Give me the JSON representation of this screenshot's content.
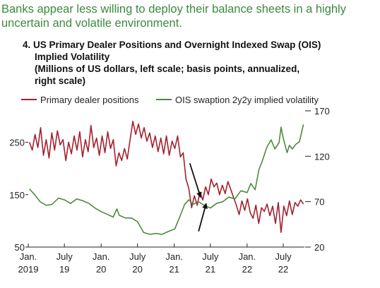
{
  "headline": [
    "Banks appear less willing to deploy their balance sheets in a highly",
    "uncertain and volatile environment."
  ],
  "chart_data": {
    "type": "line",
    "number_label": "4.",
    "title": "US Primary Dealer Positions and Overnight Indexed Swap (OIS) Implied Volatility",
    "subtitle": "(Millions of US dollars, left scale; basis points, annualized, right scale)",
    "title_lines": [
      "4. US Primary Dealer Positions and Overnight Indexed Swap (OIS)",
      "Implied Volatility",
      "(Millions of US dollars, left scale; basis points, annualized,",
      "right scale)"
    ],
    "x_range": [
      "2019-01-01",
      "2022-10-15"
    ],
    "x_ticks": [
      {
        "date": "2019-01-01",
        "line1": "Jan.",
        "line2": "2019"
      },
      {
        "date": "2019-07-01",
        "line1": "July",
        "line2": "19"
      },
      {
        "date": "2020-01-01",
        "line1": "Jan.",
        "line2": "20"
      },
      {
        "date": "2020-07-01",
        "line1": "July",
        "line2": "20"
      },
      {
        "date": "2021-01-01",
        "line1": "Jan.",
        "line2": "21"
      },
      {
        "date": "2021-07-01",
        "line1": "July",
        "line2": "21"
      },
      {
        "date": "2022-01-01",
        "line1": "Jan.",
        "line2": "22"
      },
      {
        "date": "2022-07-01",
        "line1": "July",
        "line2": "22"
      }
    ],
    "y_left": {
      "range": [
        50,
        310
      ],
      "ticks": [
        "50",
        "150",
        "250"
      ]
    },
    "y_right": {
      "range": [
        20,
        170
      ],
      "ticks": [
        "20",
        "70",
        "120",
        "170"
      ]
    },
    "legend_position": "top",
    "annotation": "two arrows pointing to the crossover of the series around May 2021",
    "series": [
      {
        "name": "Primary dealer positions",
        "axis": "left",
        "color": "#a3212e",
        "points": [
          [
            "2019-01-07",
            250
          ],
          [
            "2019-01-21",
            235
          ],
          [
            "2019-02-04",
            265
          ],
          [
            "2019-02-18",
            240
          ],
          [
            "2019-03-04",
            278
          ],
          [
            "2019-03-18",
            225
          ],
          [
            "2019-04-01",
            255
          ],
          [
            "2019-04-15",
            220
          ],
          [
            "2019-04-29",
            268
          ],
          [
            "2019-05-13",
            235
          ],
          [
            "2019-05-27",
            272
          ],
          [
            "2019-06-10",
            245
          ],
          [
            "2019-06-24",
            255
          ],
          [
            "2019-07-08",
            215
          ],
          [
            "2019-07-22",
            250
          ],
          [
            "2019-08-05",
            228
          ],
          [
            "2019-08-19",
            262
          ],
          [
            "2019-09-02",
            235
          ],
          [
            "2019-09-16",
            270
          ],
          [
            "2019-09-30",
            222
          ],
          [
            "2019-10-14",
            255
          ],
          [
            "2019-10-28",
            232
          ],
          [
            "2019-11-11",
            282
          ],
          [
            "2019-11-25",
            240
          ],
          [
            "2019-12-09",
            258
          ],
          [
            "2019-12-23",
            225
          ],
          [
            "2020-01-06",
            262
          ],
          [
            "2020-01-20",
            230
          ],
          [
            "2020-02-03",
            270
          ],
          [
            "2020-02-17",
            238
          ],
          [
            "2020-03-02",
            255
          ],
          [
            "2020-03-16",
            205
          ],
          [
            "2020-03-30",
            230
          ],
          [
            "2020-04-13",
            215
          ],
          [
            "2020-04-27",
            238
          ],
          [
            "2020-05-11",
            218
          ],
          [
            "2020-05-25",
            255
          ],
          [
            "2020-06-08",
            290
          ],
          [
            "2020-06-22",
            265
          ],
          [
            "2020-07-06",
            285
          ],
          [
            "2020-07-20",
            258
          ],
          [
            "2020-08-03",
            278
          ],
          [
            "2020-08-17",
            252
          ],
          [
            "2020-08-31",
            268
          ],
          [
            "2020-09-14",
            240
          ],
          [
            "2020-09-28",
            262
          ],
          [
            "2020-10-12",
            232
          ],
          [
            "2020-10-26",
            258
          ],
          [
            "2020-11-09",
            228
          ],
          [
            "2020-11-23",
            262
          ],
          [
            "2020-12-07",
            225
          ],
          [
            "2020-12-21",
            252
          ],
          [
            "2021-01-04",
            238
          ],
          [
            "2021-01-18",
            262
          ],
          [
            "2021-02-01",
            222
          ],
          [
            "2021-02-15",
            230
          ],
          [
            "2021-03-01",
            180
          ],
          [
            "2021-03-15",
            162
          ],
          [
            "2021-03-29",
            125
          ],
          [
            "2021-04-12",
            148
          ],
          [
            "2021-04-26",
            130
          ],
          [
            "2021-05-10",
            155
          ],
          [
            "2021-05-24",
            140
          ],
          [
            "2021-06-07",
            165
          ],
          [
            "2021-06-21",
            150
          ],
          [
            "2021-07-05",
            180
          ],
          [
            "2021-07-19",
            165
          ],
          [
            "2021-08-02",
            172
          ],
          [
            "2021-08-16",
            150
          ],
          [
            "2021-08-30",
            168
          ],
          [
            "2021-09-13",
            152
          ],
          [
            "2021-09-27",
            175
          ],
          [
            "2021-10-11",
            160
          ],
          [
            "2021-10-25",
            145
          ],
          [
            "2021-11-08",
            130
          ],
          [
            "2021-11-22",
            112
          ],
          [
            "2021-12-06",
            138
          ],
          [
            "2021-12-20",
            120
          ],
          [
            "2022-01-03",
            142
          ],
          [
            "2022-01-17",
            115
          ],
          [
            "2022-01-31",
            105
          ],
          [
            "2022-02-14",
            130
          ],
          [
            "2022-02-28",
            95
          ],
          [
            "2022-03-14",
            125
          ],
          [
            "2022-03-28",
            118
          ],
          [
            "2022-04-11",
            132
          ],
          [
            "2022-04-25",
            110
          ],
          [
            "2022-05-09",
            128
          ],
          [
            "2022-05-23",
            95
          ],
          [
            "2022-06-06",
            135
          ],
          [
            "2022-06-20",
            78
          ],
          [
            "2022-07-04",
            128
          ],
          [
            "2022-07-18",
            110
          ],
          [
            "2022-08-01",
            138
          ],
          [
            "2022-08-15",
            112
          ],
          [
            "2022-08-29",
            135
          ],
          [
            "2022-09-12",
            128
          ],
          [
            "2022-09-26",
            140
          ],
          [
            "2022-10-10",
            132
          ]
        ]
      },
      {
        "name": "OIS swaption 2y2y implied volatility",
        "axis": "right",
        "color": "#4c8a3c",
        "points": [
          [
            "2019-01-07",
            84
          ],
          [
            "2019-02-01",
            78
          ],
          [
            "2019-03-01",
            70
          ],
          [
            "2019-04-01",
            66
          ],
          [
            "2019-05-01",
            67
          ],
          [
            "2019-06-01",
            74
          ],
          [
            "2019-07-01",
            72
          ],
          [
            "2019-08-01",
            68
          ],
          [
            "2019-09-01",
            73
          ],
          [
            "2019-10-01",
            71
          ],
          [
            "2019-11-01",
            68
          ],
          [
            "2019-12-01",
            63
          ],
          [
            "2020-01-01",
            59
          ],
          [
            "2020-02-01",
            56
          ],
          [
            "2020-03-01",
            53
          ],
          [
            "2020-03-20",
            62
          ],
          [
            "2020-04-01",
            55
          ],
          [
            "2020-05-01",
            52
          ],
          [
            "2020-06-01",
            52
          ],
          [
            "2020-07-01",
            48
          ],
          [
            "2020-08-01",
            36
          ],
          [
            "2020-09-01",
            34
          ],
          [
            "2020-10-01",
            35
          ],
          [
            "2020-11-01",
            34
          ],
          [
            "2020-12-01",
            37
          ],
          [
            "2021-01-04",
            40
          ],
          [
            "2021-02-01",
            55
          ],
          [
            "2021-02-22",
            67
          ],
          [
            "2021-03-15",
            72
          ],
          [
            "2021-04-05",
            67
          ],
          [
            "2021-05-01",
            70
          ],
          [
            "2021-06-01",
            66
          ],
          [
            "2021-07-01",
            63
          ],
          [
            "2021-08-01",
            68
          ],
          [
            "2021-09-01",
            70
          ],
          [
            "2021-10-01",
            75
          ],
          [
            "2021-11-01",
            73
          ],
          [
            "2021-12-01",
            82
          ],
          [
            "2022-01-01",
            80
          ],
          [
            "2022-01-20",
            90
          ],
          [
            "2022-02-10",
            83
          ],
          [
            "2022-03-01",
            105
          ],
          [
            "2022-03-20",
            116
          ],
          [
            "2022-04-10",
            130
          ],
          [
            "2022-05-01",
            138
          ],
          [
            "2022-05-20",
            128
          ],
          [
            "2022-06-10",
            135
          ],
          [
            "2022-06-20",
            152
          ],
          [
            "2022-07-01",
            140
          ],
          [
            "2022-07-20",
            124
          ],
          [
            "2022-08-01",
            132
          ],
          [
            "2022-08-15",
            128
          ],
          [
            "2022-09-01",
            133
          ],
          [
            "2022-09-20",
            136
          ],
          [
            "2022-10-10",
            155
          ]
        ]
      }
    ],
    "arrows": [
      {
        "from": {
          "date": "2021-03-20",
          "left": 210
        },
        "to": {
          "date": "2021-05-13",
          "left": 145
        }
      },
      {
        "from": {
          "date": "2021-05-03",
          "left": 80
        },
        "to": {
          "date": "2021-06-10",
          "left": 133
        }
      }
    ]
  }
}
